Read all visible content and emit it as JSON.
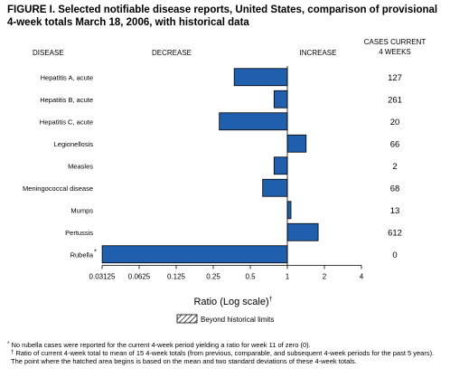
{
  "title": "FIGURE I. Selected notifiable disease reports, United States, comparison of provisional 4-week totals March 18, 2006, with historical data",
  "headers": {
    "disease": "DISEASE",
    "decrease": "DECREASE",
    "increase": "INCREASE",
    "cases_line1": "CASES CURRENT",
    "cases_line2": "4 WEEKS"
  },
  "legend": {
    "label": "Beyond historical limits"
  },
  "footnotes": {
    "star_mark": "*",
    "star_text": "No rubella cases were reported for the current 4-week period yielding a ratio for week 11 of zero (0).",
    "dagger_mark": "†",
    "dagger_text": "Ratio of current 4-week total to mean of 15 4-week totals (from previous, comparable, and subsequent 4-week periods for the past 5 years). The point where the hatched area begins is based on the mean and two standard deviations of these 4-week totals."
  },
  "chart_data": {
    "type": "bar",
    "orientation": "horizontal",
    "x_scale": "log2",
    "xlabel": "Ratio (Log scale)",
    "xlabel_mark": "†",
    "xlim": [
      0.03125,
      4
    ],
    "ticks": [
      0.03125,
      0.0625,
      0.125,
      0.25,
      0.5,
      1,
      2,
      4
    ],
    "tick_labels": [
      "0.03125",
      "0.0625",
      "0.125",
      "0.25",
      "0.5",
      "1",
      "2",
      "4"
    ],
    "baseline": 1,
    "categories": [
      "Hepatitis A, acute",
      "Hepatitis B, acute",
      "Hepatitis C, acute",
      "Legionellosis",
      "Measles",
      "Meningococcal disease",
      "Mumps",
      "Pertussis",
      "Rubella"
    ],
    "category_marks": [
      "",
      "",
      "",
      "",
      "",
      "",
      "",
      "",
      "*"
    ],
    "values": [
      0.37,
      0.78,
      0.28,
      1.42,
      0.78,
      0.63,
      1.07,
      1.78,
      0.0313
    ],
    "cases": [
      "127",
      "261",
      "20",
      "66",
      "2",
      "68",
      "13",
      "612",
      "0"
    ],
    "bar_color": "#1f5fad",
    "bar_edge": "#000000"
  }
}
